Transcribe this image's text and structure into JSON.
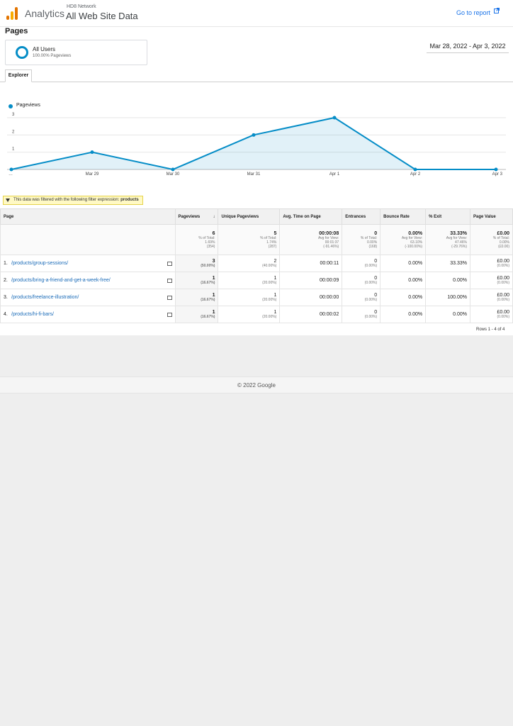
{
  "header": {
    "brand": "Analytics",
    "account": "HD8 Network",
    "property": "All Web Site Data",
    "goto_report": "Go to report",
    "logo_colors": [
      "#f9ab00",
      "#e37400",
      "#e37400"
    ]
  },
  "page": {
    "title": "Pages",
    "segment": {
      "name": "All Users",
      "sub": "100.00% Pageviews",
      "color": "#058dc7"
    },
    "date_range": "Mar 28, 2022 - Apr 3, 2022",
    "tab": "Explorer"
  },
  "chart_data": {
    "type": "area",
    "title": "",
    "xlabel": "",
    "ylabel": "",
    "legend": "top-left",
    "series": [
      {
        "name": "Pageviews",
        "color": "#058dc7",
        "values": [
          0,
          1,
          0,
          2,
          3,
          0,
          0
        ]
      }
    ],
    "categories": [
      "…",
      "Mar 29",
      "Mar 30",
      "Mar 31",
      "Apr 1",
      "Apr 2",
      "Apr 3"
    ],
    "yticks": [
      "1",
      "2",
      "3"
    ],
    "ylim": [
      0,
      3
    ],
    "grid": true
  },
  "filter": {
    "text": "This data was filtered with the following filter expression:",
    "expression": "products"
  },
  "table": {
    "headers": {
      "page": "Page",
      "pageviews": "Pageviews",
      "unique": "Unique Pageviews",
      "avg_time": "Avg. Time on Page",
      "entrances": "Entrances",
      "bounce": "Bounce Rate",
      "exit": "% Exit",
      "value": "Page Value"
    },
    "totals": {
      "pageviews": [
        "6",
        "% of Total:",
        "1.69%",
        "(354)"
      ],
      "unique": [
        "5",
        "% of Total:",
        "1.74%",
        "(287)"
      ],
      "avg_time": [
        "00:00:08",
        "Avg for View:",
        "00:01:37",
        "(-91.46%)"
      ],
      "entrances": [
        "0",
        "% of Total:",
        "0.00%",
        "(168)"
      ],
      "bounce": [
        "0.00%",
        "Avg for View:",
        "63.10%",
        "(-100.00%)"
      ],
      "exit": [
        "33.33%",
        "Avg for View:",
        "47.46%",
        "(-29.76%)"
      ],
      "value": [
        "£0.00",
        "% of Total:",
        "0.00%",
        "(£0.00)"
      ]
    },
    "rows": [
      {
        "idx": "1.",
        "page": "/products/group-sessions/",
        "pageviews": "3",
        "pv_pct": "(50.00%)",
        "unique": "2",
        "u_pct": "(40.00%)",
        "avg_time": "00:00:11",
        "entrances": "0",
        "e_pct": "(0.00%)",
        "bounce": "0.00%",
        "exit": "33.33%",
        "value": "£0.00",
        "v_pct": "(0.00%)"
      },
      {
        "idx": "2.",
        "page": "/products/bring-a-friend-and-get-a-week-free/",
        "pageviews": "1",
        "pv_pct": "(16.67%)",
        "unique": "1",
        "u_pct": "(20.00%)",
        "avg_time": "00:00:09",
        "entrances": "0",
        "e_pct": "(0.00%)",
        "bounce": "0.00%",
        "exit": "0.00%",
        "value": "£0.00",
        "v_pct": "(0.00%)"
      },
      {
        "idx": "3.",
        "page": "/products/freelance-illustration/",
        "pageviews": "1",
        "pv_pct": "(16.67%)",
        "unique": "1",
        "u_pct": "(20.00%)",
        "avg_time": "00:00:00",
        "entrances": "0",
        "e_pct": "(0.00%)",
        "bounce": "0.00%",
        "exit": "100.00%",
        "value": "£0.00",
        "v_pct": "(0.00%)"
      },
      {
        "idx": "4.",
        "page": "/products/hi-fi-bars/",
        "pageviews": "1",
        "pv_pct": "(16.67%)",
        "unique": "1",
        "u_pct": "(20.00%)",
        "avg_time": "00:00:02",
        "entrances": "0",
        "e_pct": "(0.00%)",
        "bounce": "0.00%",
        "exit": "0.00%",
        "value": "£0.00",
        "v_pct": "(0.00%)"
      }
    ],
    "rows_footer": "Rows 1 - 4 of 4"
  },
  "footer": {
    "copyright": "© 2022 Google"
  }
}
